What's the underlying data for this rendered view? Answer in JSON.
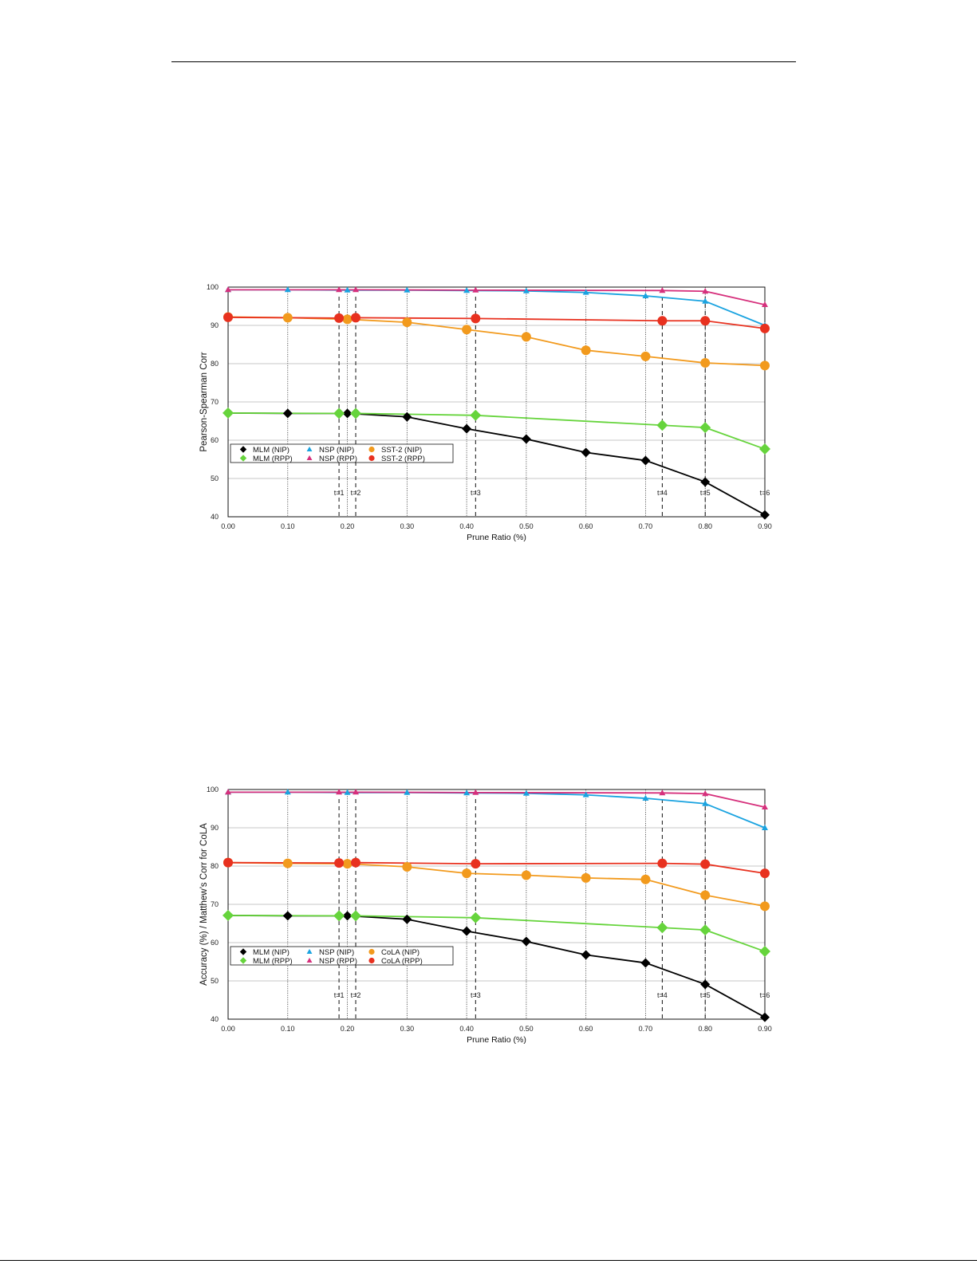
{
  "chart_data": [
    {
      "type": "line",
      "ylabel": "Pearson-Spearman Corr",
      "xlabel": "Prune Ratio (%)",
      "xlim": [
        0,
        0.9
      ],
      "ylim": [
        40,
        100
      ],
      "xticks": [
        0,
        0.1,
        0.2,
        0.3,
        0.4,
        0.5,
        0.6,
        0.7,
        0.8,
        0.9
      ],
      "xtick_labels": [
        "0.00",
        "0.10",
        "0.20",
        "0.30",
        "0.40",
        "0.50",
        "0.60",
        "0.70",
        "0.80",
        "0.90"
      ],
      "yticks": [
        40,
        50,
        60,
        70,
        80,
        90,
        100
      ],
      "ytick_labels": [
        "40",
        "50",
        "60",
        "70",
        "80",
        "90",
        "100"
      ],
      "grid": true,
      "legend_position": "lower-left",
      "t_lines": [
        {
          "x": 0.186,
          "label": "t=1"
        },
        {
          "x": 0.214,
          "label": "t=2"
        },
        {
          "x": 0.415,
          "label": "t=3"
        },
        {
          "x": 0.728,
          "label": "t=4"
        },
        {
          "x": 0.8,
          "label": "t=5"
        },
        {
          "x": 0.9,
          "label": "t=6"
        }
      ],
      "series": [
        {
          "name": "MLM (NIP)",
          "marker": "diamond",
          "color": "#000000",
          "x": [
            0,
            0.1,
            0.2,
            0.3,
            0.4,
            0.5,
            0.6,
            0.7,
            0.8,
            0.9
          ],
          "y": [
            67.1,
            67.0,
            67.0,
            66.1,
            63.0,
            60.3,
            56.8,
            54.7,
            49.1,
            40.5
          ]
        },
        {
          "name": "MLM (RPP)",
          "marker": "diamond",
          "color": "#66d43c",
          "x": [
            0,
            0.186,
            0.214,
            0.415,
            0.728,
            0.8,
            0.9
          ],
          "y": [
            67.1,
            67.0,
            67.0,
            66.5,
            63.9,
            63.3,
            57.7
          ]
        },
        {
          "name": "NSP (NIP)",
          "marker": "triangle",
          "color": "#1aa3e0",
          "x": [
            0,
            0.1,
            0.2,
            0.3,
            0.4,
            0.5,
            0.6,
            0.7,
            0.8,
            0.9
          ],
          "y": [
            99.3,
            99.3,
            99.2,
            99.2,
            99.1,
            99.0,
            98.6,
            97.7,
            96.3,
            90.0
          ]
        },
        {
          "name": "NSP (RPP)",
          "marker": "triangle",
          "color": "#d6307c",
          "x": [
            0,
            0.186,
            0.214,
            0.415,
            0.728,
            0.8,
            0.9
          ],
          "y": [
            99.3,
            99.3,
            99.3,
            99.2,
            99.1,
            98.9,
            95.4
          ]
        },
        {
          "name": "SST-2 (NIP)",
          "marker": "circle",
          "color": "#f29a1d",
          "x": [
            0,
            0.1,
            0.2,
            0.3,
            0.4,
            0.5,
            0.6,
            0.7,
            0.8,
            0.9
          ],
          "y": [
            92.2,
            92.0,
            91.6,
            90.8,
            88.9,
            87.0,
            83.5,
            81.9,
            80.2,
            79.5
          ]
        },
        {
          "name": "SST-2 (RPP)",
          "marker": "circle",
          "color": "#e8311f",
          "x": [
            0,
            0.186,
            0.214,
            0.415,
            0.728,
            0.8,
            0.9
          ],
          "y": [
            92.1,
            91.9,
            92.0,
            91.8,
            91.2,
            91.2,
            89.2
          ]
        }
      ]
    },
    {
      "type": "line",
      "ylabel": "Accuracy (%) / Matthew’s Corr for CoLA",
      "xlabel": "Prune Ratio (%)",
      "xlim": [
        0,
        0.9
      ],
      "ylim": [
        40,
        100
      ],
      "xticks": [
        0,
        0.1,
        0.2,
        0.3,
        0.4,
        0.5,
        0.6,
        0.7,
        0.8,
        0.9
      ],
      "xtick_labels": [
        "0.00",
        "0.10",
        "0.20",
        "0.30",
        "0.40",
        "0.50",
        "0.60",
        "0.70",
        "0.80",
        "0.90"
      ],
      "yticks": [
        40,
        50,
        60,
        70,
        80,
        90,
        100
      ],
      "ytick_labels": [
        "40",
        "50",
        "60",
        "70",
        "80",
        "90",
        "100"
      ],
      "grid": true,
      "legend_position": "lower-left",
      "t_lines": [
        {
          "x": 0.186,
          "label": "t=1"
        },
        {
          "x": 0.214,
          "label": "t=2"
        },
        {
          "x": 0.415,
          "label": "t=3"
        },
        {
          "x": 0.728,
          "label": "t=4"
        },
        {
          "x": 0.8,
          "label": "t=5"
        },
        {
          "x": 0.9,
          "label": "t=6"
        }
      ],
      "series": [
        {
          "name": "MLM (NIP)",
          "marker": "diamond",
          "color": "#000000",
          "x": [
            0,
            0.1,
            0.2,
            0.3,
            0.4,
            0.5,
            0.6,
            0.7,
            0.8,
            0.9
          ],
          "y": [
            67.1,
            67.0,
            67.0,
            66.1,
            63.0,
            60.3,
            56.8,
            54.7,
            49.1,
            40.5
          ]
        },
        {
          "name": "MLM (RPP)",
          "marker": "diamond",
          "color": "#66d43c",
          "x": [
            0,
            0.186,
            0.214,
            0.415,
            0.728,
            0.8,
            0.9
          ],
          "y": [
            67.1,
            67.0,
            67.0,
            66.5,
            63.9,
            63.3,
            57.7
          ]
        },
        {
          "name": "NSP (NIP)",
          "marker": "triangle",
          "color": "#1aa3e0",
          "x": [
            0,
            0.1,
            0.2,
            0.3,
            0.4,
            0.5,
            0.6,
            0.7,
            0.8,
            0.9
          ],
          "y": [
            99.3,
            99.3,
            99.2,
            99.2,
            99.1,
            99.0,
            98.6,
            97.7,
            96.3,
            90.0
          ]
        },
        {
          "name": "NSP (RPP)",
          "marker": "triangle",
          "color": "#d6307c",
          "x": [
            0,
            0.186,
            0.214,
            0.415,
            0.728,
            0.8,
            0.9
          ],
          "y": [
            99.3,
            99.3,
            99.3,
            99.2,
            99.1,
            98.9,
            95.4
          ]
        },
        {
          "name": "CoLA (NIP)",
          "marker": "circle",
          "color": "#f29a1d",
          "x": [
            0,
            0.1,
            0.2,
            0.3,
            0.4,
            0.5,
            0.6,
            0.7,
            0.8,
            0.9
          ],
          "y": [
            80.9,
            80.7,
            80.6,
            79.8,
            78.1,
            77.6,
            76.9,
            76.5,
            72.4,
            69.5
          ]
        },
        {
          "name": "CoLA (RPP)",
          "marker": "circle",
          "color": "#e8311f",
          "x": [
            0,
            0.186,
            0.214,
            0.415,
            0.728,
            0.8,
            0.9
          ],
          "y": [
            80.9,
            80.8,
            80.9,
            80.6,
            80.7,
            80.5,
            78.1
          ]
        }
      ]
    }
  ]
}
